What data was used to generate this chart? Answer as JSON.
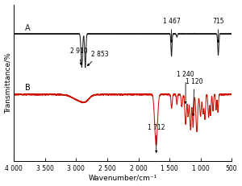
{
  "title": "",
  "xlabel": "Wavenumber/cm⁻¹",
  "ylabel": "Transmittance/%",
  "xmin": 500,
  "xmax": 4000,
  "label_A": "A",
  "label_B": "B",
  "background_color": "#ffffff",
  "spectrum_A_color": "#222222",
  "spectrum_B_color": "#cc1100",
  "xtick_labels": [
    "4 000",
    "3 500",
    "3 000",
    "2 500",
    "2 000",
    "1 500",
    "1 000",
    "500"
  ],
  "xtick_vals": [
    4000,
    3500,
    3000,
    2500,
    2000,
    1500,
    1000,
    500
  ]
}
